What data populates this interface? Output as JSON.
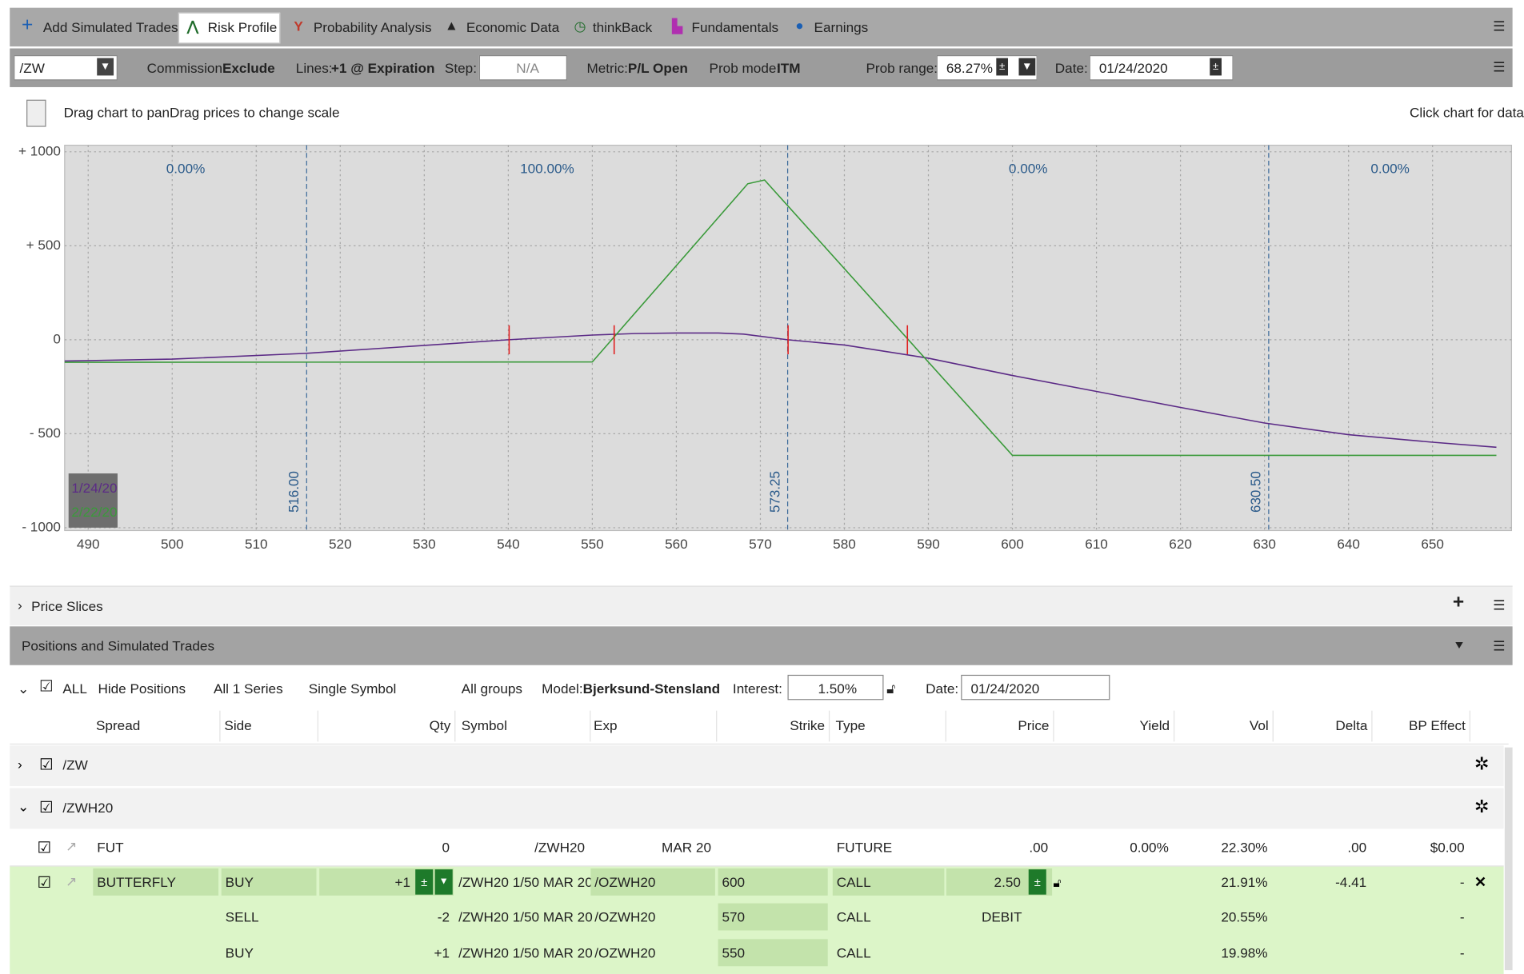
{
  "toolbar": {
    "tabs": [
      "Add Simulated Trades",
      "Risk Profile",
      "Probability Analysis",
      "Economic Data",
      "thinkBack",
      "Fundamentals",
      "Earnings"
    ]
  },
  "controls": {
    "symbol": "/ZW",
    "commission_label": "Commission:",
    "commission": "Exclude",
    "lines_label": "Lines:",
    "lines": "+1 @ Expiration",
    "step_label": "Step:",
    "step": "N/A",
    "metric_label": "Metric:",
    "metric": "P/L Open",
    "prob_mode_label": "Prob mode:",
    "prob_mode": "ITM",
    "prob_range_label": "Prob range:",
    "prob_range": "68.27%",
    "date_label": "Date:",
    "date": "01/24/2020"
  },
  "chart_hint": "Drag chart to panDrag prices to change scale",
  "chart_hint_right": "Click chart for data",
  "chart_data": {
    "type": "line",
    "xlim": [
      487.2,
      659.4
    ],
    "ylim": [
      -1015,
      1035
    ],
    "xticks": [
      490,
      500,
      510,
      520,
      530,
      540,
      550,
      560,
      570,
      580,
      590,
      600,
      610,
      620,
      630,
      640,
      650
    ],
    "yticks": [
      {
        "value": 1000,
        "label": "+ 1000"
      },
      {
        "value": 500,
        "label": "+ 500"
      },
      0,
      {
        "value": -500,
        "label": "- 500"
      },
      {
        "value": -1000,
        "label": "- 1000"
      }
    ],
    "grid": true,
    "range_lines": [
      {
        "value": 516,
        "label": "516.00"
      },
      {
        "value": 573.25,
        "label": "573.25"
      },
      {
        "value": 630.5,
        "label": "630.50"
      }
    ],
    "probabilities": [
      0,
      100,
      0,
      0
    ],
    "probability_labels": [
      "0.00%",
      "100.00%",
      "0.00%",
      "0.00%"
    ],
    "breakevens": [
      540.1,
      552.6,
      573.3,
      587.5
    ],
    "series": [
      {
        "name": "1/24/20",
        "color": "#5b2a86",
        "x": [
          487.2,
          500,
          516,
          530,
          540,
          550,
          555,
          560,
          565,
          568,
          573.25,
          580,
          590,
          600,
          610,
          620,
          630,
          640,
          650,
          657.6
        ],
        "values": [
          -113,
          -103,
          -72,
          -30,
          0,
          25,
          33,
          36,
          36,
          30,
          0,
          -28,
          -98,
          -190,
          -275,
          -360,
          -443,
          -505,
          -545,
          -572
        ]
      },
      {
        "name": "2/22/20",
        "color": "#3a9a3a",
        "x": [
          487.2,
          550,
          568.5,
          570.5,
          600,
          657.6
        ],
        "values": [
          -120,
          -118,
          830,
          850,
          -615,
          -615
        ]
      }
    ],
    "legend": "bottom-left"
  },
  "price_slices": "Price Slices",
  "positions": {
    "title": "Positions and Simulated Trades",
    "filters": [
      "ALL",
      "Hide Positions",
      "All 1 Series",
      "Single Symbol",
      "All groups"
    ],
    "model_label": "Model:",
    "model": "Bjerksund-Stensland",
    "interest_label": "Interest:",
    "interest": "1.50%",
    "date_label": "Date:",
    "date": "01/24/2020",
    "columns": [
      "Spread",
      "Side",
      "Qty",
      "Symbol",
      "Exp",
      "Strike",
      "Type",
      "Price",
      "Yield",
      "Vol",
      "Delta",
      "BP Effect"
    ],
    "groups": [
      "/ZW",
      "/ZWH20"
    ],
    "rows": [
      [
        "FUT",
        "",
        "0",
        "/ZWH20",
        "MAR 20",
        "",
        "FUTURE",
        ".00",
        "0.00%",
        "22.30%",
        ".00",
        "$0.00"
      ],
      [
        "BUTTERFLY",
        "BUY",
        "+1",
        "/ZWH20 1/50 MAR 20",
        "/OZWH20",
        "600",
        "CALL",
        "2.50",
        "",
        "21.91%",
        "-4.41",
        "-"
      ],
      [
        "",
        "SELL",
        "-2",
        "/ZWH20 1/50 MAR 20",
        "/OZWH20",
        "570",
        "CALL",
        "DEBIT",
        "",
        "20.55%",
        "",
        "-"
      ],
      [
        "",
        "BUY",
        "+1",
        "/ZWH20 1/50 MAR 20",
        "/OZWH20",
        "550",
        "CALL",
        "",
        "",
        "19.98%",
        "",
        "-"
      ]
    ]
  }
}
